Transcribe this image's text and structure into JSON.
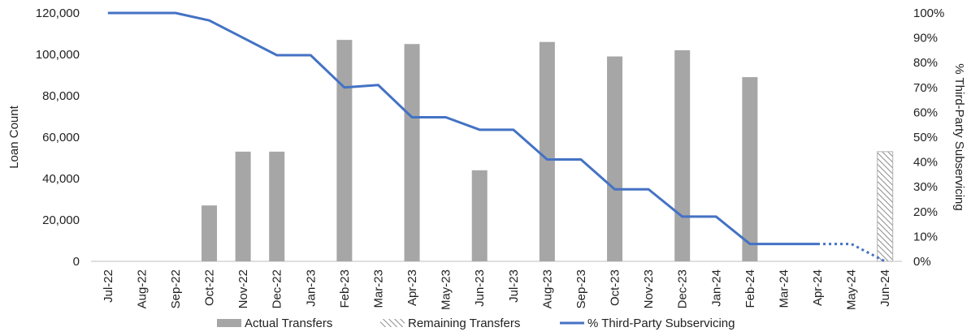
{
  "chart_data": {
    "type": "bar",
    "categories": [
      "Jul-22",
      "Aug-22",
      "Sep-22",
      "Oct-22",
      "Nov-22",
      "Dec-22",
      "Jan-23",
      "Feb-23",
      "Mar-23",
      "Apr-23",
      "May-23",
      "Jun-23",
      "Jul-23",
      "Aug-23",
      "Sep-23",
      "Oct-23",
      "Nov-23",
      "Dec-23",
      "Jan-24",
      "Feb-24",
      "Mar-24",
      "Apr-24",
      "May-24",
      "Jun-24"
    ],
    "ylabel": "Loan Count",
    "y2label": "% Third-Party Subservicing",
    "ylim": [
      0,
      120000
    ],
    "y2lim": [
      0,
      1
    ],
    "yticks": [
      "0",
      "20,000",
      "40,000",
      "60,000",
      "80,000",
      "100,000",
      "120,000"
    ],
    "y2ticks": [
      "0%",
      "10%",
      "20%",
      "30%",
      "40%",
      "50%",
      "60%",
      "70%",
      "80%",
      "90%",
      "100%"
    ],
    "grid": false,
    "legend_position": "bottom",
    "series": [
      {
        "name": "Actual Transfers",
        "type": "bar",
        "color": "#a6a6a6",
        "values": [
          0,
          0,
          0,
          27000,
          53000,
          53000,
          0,
          107000,
          0,
          105000,
          0,
          44000,
          0,
          106000,
          0,
          99000,
          0,
          102000,
          0,
          89000,
          0,
          0,
          0,
          0
        ]
      },
      {
        "name": "Remaining Transfers",
        "type": "bar-hatched",
        "color": "#a6a6a6",
        "values": [
          0,
          0,
          0,
          0,
          0,
          0,
          0,
          0,
          0,
          0,
          0,
          0,
          0,
          0,
          0,
          0,
          0,
          0,
          0,
          0,
          0,
          0,
          0,
          53000
        ]
      },
      {
        "name": "% Third-Party Subservicing",
        "type": "line",
        "axis": "secondary",
        "color": "#4472c4",
        "values": [
          1.0,
          1.0,
          1.0,
          0.97,
          0.9,
          0.83,
          0.83,
          0.7,
          0.71,
          0.58,
          0.58,
          0.53,
          0.53,
          0.41,
          0.41,
          0.29,
          0.29,
          0.18,
          0.18,
          0.07,
          0.07,
          0.07,
          0.07,
          0.0
        ],
        "dashed_from_index": 21
      }
    ]
  }
}
